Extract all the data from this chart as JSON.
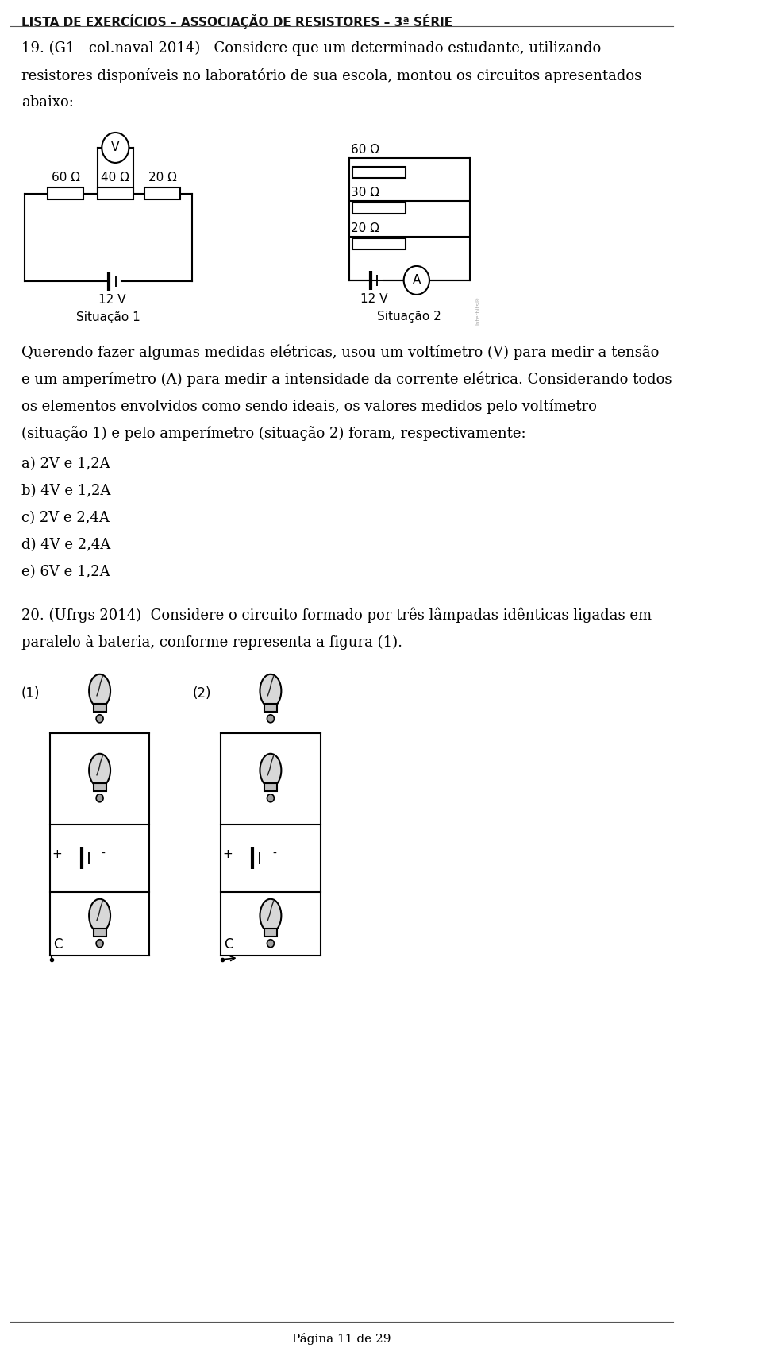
{
  "title": "LISTA DE EXERCÍCIOS – ASSOCIAÇÃO DE RESISTORES – 3ª SÉRIE",
  "background_color": "#ffffff",
  "text_color": "#000000",
  "page_number": "Página 11 de 29",
  "sit1_label": "Situação 1",
  "sit2_label": "Situação 2",
  "sit1_voltage": "12 V",
  "sit2_voltage": "12 V",
  "sit1_r1": "60 Ω",
  "sit1_r2": "40 Ω",
  "sit1_r3": "20 Ω",
  "sit2_r1": "60 Ω",
  "sit2_r2": "30 Ω",
  "sit2_r3": "20 Ω",
  "options": [
    "a) 2V e 1,2A",
    "b) 4V e 1,2A",
    "c) 2V e 2,4A",
    "d) 4V e 2,4A",
    "e) 6V e 1,2A"
  ],
  "fig1_label": "(1)",
  "fig2_label": "(2)",
  "interbits": "Interbits®"
}
